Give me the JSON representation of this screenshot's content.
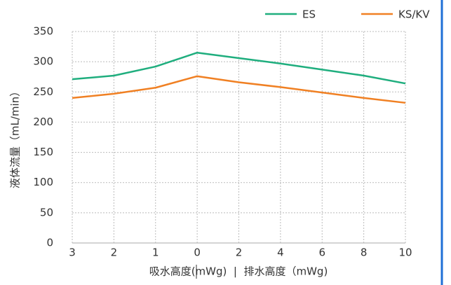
{
  "chart_data": {
    "type": "line",
    "y_label": "液体流量（mL/min）",
    "x_label": "吸水高度(mWg)  |  排水高度（mWg)",
    "categories": [
      "3",
      "2",
      "1",
      "0",
      "2",
      "4",
      "6",
      "8",
      "10"
    ],
    "series": [
      {
        "name": "ES",
        "color": "#1fae7e",
        "values": [
          271,
          277,
          292,
          315,
          306,
          297,
          287,
          277,
          264
        ]
      },
      {
        "name": "KS/KV",
        "color": "#f08023",
        "values": [
          240,
          247,
          257,
          276,
          266,
          258,
          249,
          240,
          232
        ]
      }
    ],
    "ylim": [
      0,
      350
    ],
    "yticks": [
      0,
      50,
      100,
      150,
      200,
      250,
      300,
      350
    ],
    "grid": true
  }
}
